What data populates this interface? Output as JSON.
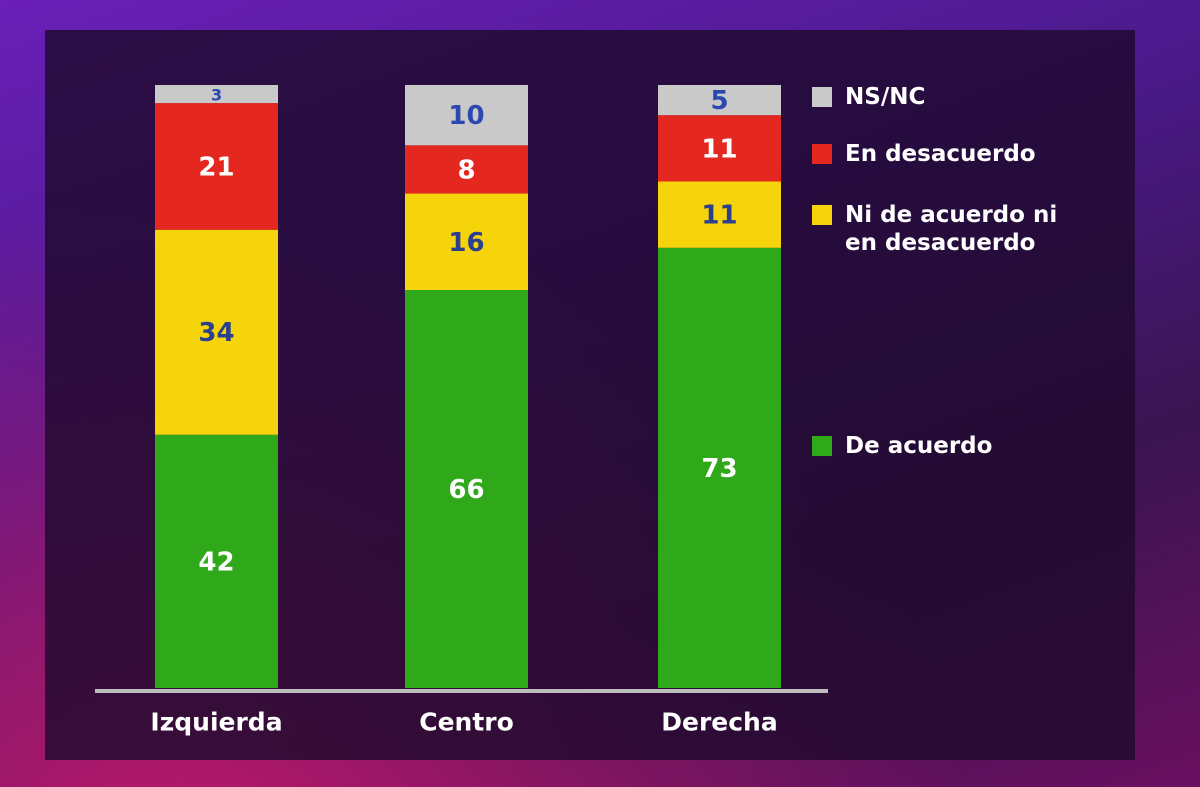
{
  "chart_data": {
    "type": "stacked-bar",
    "categories": [
      "Izquierda",
      "Centro",
      "Derecha"
    ],
    "series": [
      {
        "name": "De acuerdo",
        "color": "#2fa81a",
        "label_color": "#ffffff",
        "values": [
          42,
          66,
          73
        ]
      },
      {
        "name": "Ni de acuerdo ni en desacuerdo",
        "color": "#f6d40c",
        "label_color": "#2b3f8f",
        "values": [
          34,
          16,
          11
        ]
      },
      {
        "name": "En desacuerdo",
        "color": "#e5281f",
        "label_color": "#ffffff",
        "values": [
          21,
          8,
          11
        ]
      },
      {
        "name": "NS/NC",
        "color": "#c9c9c9",
        "label_color": "#2b48b0",
        "values": [
          3,
          10,
          5
        ]
      }
    ],
    "ylim": [
      0,
      100
    ]
  }
}
